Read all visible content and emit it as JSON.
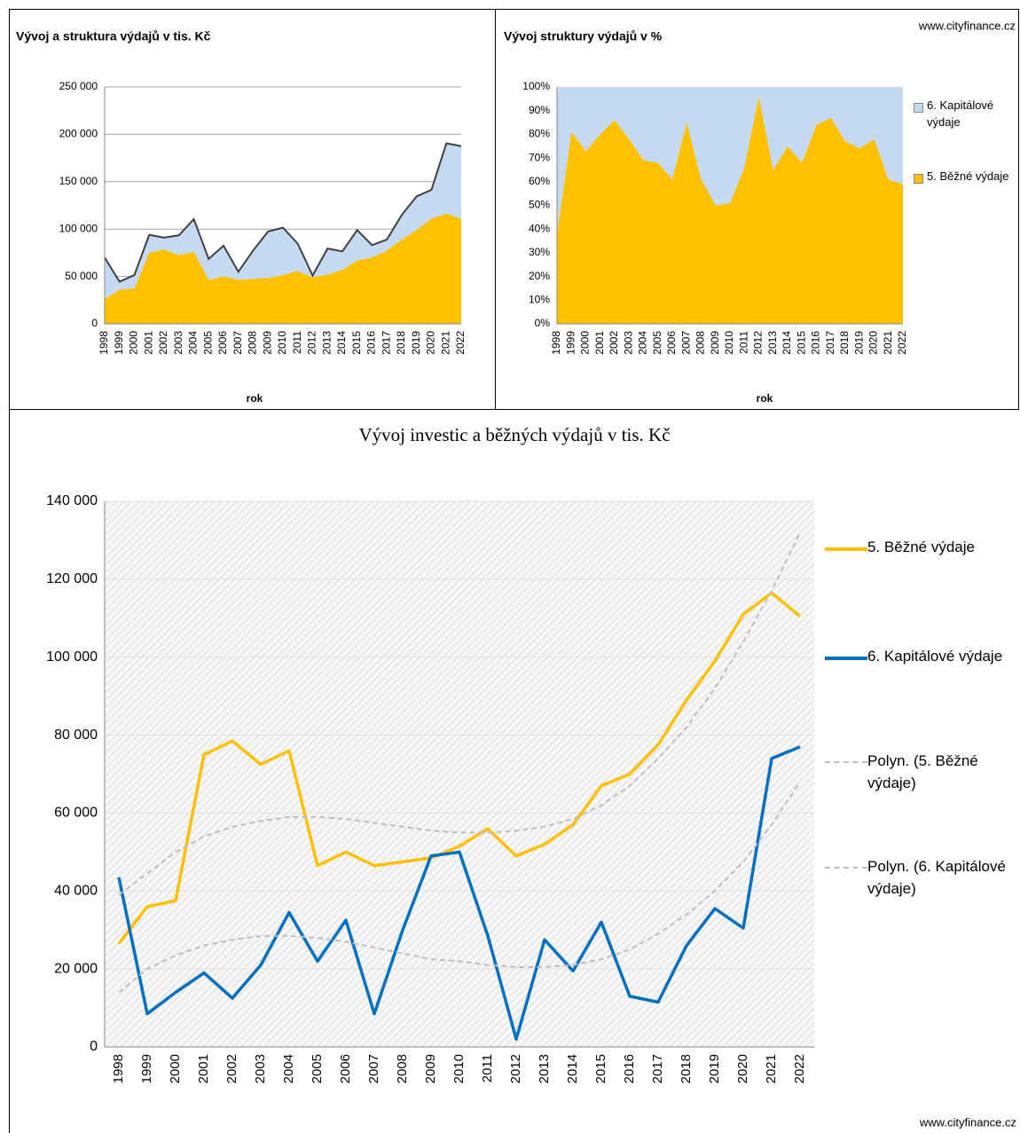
{
  "chart_data": [
    {
      "type": "area",
      "stacked": true,
      "title": "Vývoj a struktura výdajů v tis. Kč",
      "xlabel": "rok",
      "categories": [
        "1998",
        "1999",
        "2000",
        "2001",
        "2002",
        "2003",
        "2004",
        "2005",
        "2006",
        "2007",
        "2008",
        "2009",
        "2010",
        "2011",
        "2012",
        "2013",
        "2014",
        "2015",
        "2016",
        "2017",
        "2018",
        "2019",
        "2020",
        "2021",
        "2022"
      ],
      "series": [
        {
          "color": "#ffc000",
          "values": [
            26500,
            36000,
            37500,
            75000,
            78500,
            72500,
            76000,
            46500,
            50000,
            46500,
            47500,
            48500,
            51500,
            56000,
            49000,
            52000,
            57000,
            67000,
            70000,
            77500,
            89000,
            99000,
            111000,
            116500,
            110500
          ]
        },
        {
          "color": "#c5d9f1",
          "values": [
            43500,
            8500,
            14000,
            19000,
            12500,
            21000,
            34500,
            22000,
            32500,
            8500,
            30000,
            49000,
            50000,
            28500,
            2000,
            27500,
            19500,
            32000,
            13000,
            11500,
            26000,
            35500,
            30500,
            74000,
            77000
          ]
        }
      ],
      "outline_color": "#404040",
      "ylim": [
        0,
        250000
      ],
      "yticks": [
        0,
        {
          "value": 50000,
          "label": "50 000"
        },
        {
          "value": 100000,
          "label": "100 000"
        },
        {
          "value": 150000,
          "label": "150 000"
        },
        {
          "value": 200000,
          "label": "200 000"
        },
        {
          "value": 250000,
          "label": "250 000"
        }
      ],
      "grid": true
    },
    {
      "type": "area",
      "stacked": true,
      "title": "Vývoj struktury výdajů v %",
      "xlabel": "rok",
      "source": "www.cityfinance.cz",
      "categories": [
        "1998",
        "1999",
        "2000",
        "2001",
        "2002",
        "2003",
        "2004",
        "2005",
        "2006",
        "2007",
        "2008",
        "2009",
        "2010",
        "2011",
        "2012",
        "2013",
        "2014",
        "2015",
        "2016",
        "2017",
        "2018",
        "2019",
        "2020",
        "2021",
        "2022"
      ],
      "series": [
        {
          "name": "5. Běžné výdaje",
          "color": "#ffc000",
          "values": [
            38,
            81,
            73,
            80,
            86,
            78,
            69,
            68,
            61,
            85,
            61,
            50,
            51,
            66,
            96,
            65,
            75,
            68,
            84,
            87,
            77,
            74,
            78,
            61,
            59
          ]
        },
        {
          "name": "6. Kapitálové výdaje",
          "color": "#c5d9f1",
          "values": [
            62,
            19,
            27,
            20,
            14,
            22,
            31,
            32,
            39,
            15,
            39,
            50,
            49,
            34,
            4,
            35,
            25,
            32,
            16,
            13,
            23,
            26,
            22,
            39,
            41
          ]
        }
      ],
      "ylim": [
        0,
        100
      ],
      "yticks": [
        {
          "value": 0,
          "label": "0%"
        },
        {
          "value": 10,
          "label": "10%"
        },
        {
          "value": 20,
          "label": "20%"
        },
        {
          "value": 30,
          "label": "30%"
        },
        {
          "value": 40,
          "label": "40%"
        },
        {
          "value": 50,
          "label": "50%"
        },
        {
          "value": 60,
          "label": "60%"
        },
        {
          "value": 70,
          "label": "70%"
        },
        {
          "value": 80,
          "label": "80%"
        },
        {
          "value": 90,
          "label": "90%"
        },
        {
          "value": 100,
          "label": "100%"
        }
      ],
      "grid": false,
      "legend": "right"
    },
    {
      "type": "line",
      "title": "Vývoj investic a běžných výdajů v tis. Kč",
      "source": "www.cityfinance.cz",
      "categories": [
        "1998",
        "1999",
        "2000",
        "2001",
        "2002",
        "2003",
        "2004",
        "2005",
        "2006",
        "2007",
        "2008",
        "2009",
        "2010",
        "2011",
        "2012",
        "2013",
        "2014",
        "2015",
        "2016",
        "2017",
        "2018",
        "2019",
        "2020",
        "2021",
        "2022"
      ],
      "series": [
        {
          "name": "5. Běžné výdaje",
          "color": "#ffc000",
          "values": [
            26500,
            36000,
            37500,
            75000,
            78500,
            72500,
            76000,
            46500,
            50000,
            46500,
            47500,
            48500,
            51500,
            56000,
            49000,
            52000,
            57000,
            67000,
            70000,
            77500,
            89000,
            99000,
            111000,
            116500,
            110500
          ]
        },
        {
          "name": "6. Kapitálové výdaje",
          "color": "#0070c0",
          "values": [
            43500,
            8500,
            14000,
            19000,
            12500,
            21000,
            34500,
            22000,
            32500,
            8500,
            30000,
            49000,
            50000,
            28500,
            2000,
            27500,
            19500,
            32000,
            13000,
            11500,
            26000,
            35500,
            30500,
            74000,
            77000
          ]
        },
        {
          "name": "Polyn. (5. Běžné výdaje)",
          "color": "#bfbfbf",
          "dashed": true,
          "values": [
            39000,
            44500,
            50000,
            54000,
            56500,
            58000,
            59000,
            59000,
            58500,
            57500,
            56500,
            55500,
            55000,
            55000,
            55500,
            56500,
            58500,
            62000,
            67000,
            74000,
            82000,
            92000,
            104000,
            117000,
            132000
          ]
        },
        {
          "name": "Polyn. (6. Kapitálové výdaje)",
          "color": "#bfbfbf",
          "dashed": true,
          "values": [
            14000,
            20000,
            23500,
            26000,
            27500,
            28500,
            28500,
            28000,
            27000,
            25500,
            24000,
            22500,
            22000,
            21000,
            20500,
            20500,
            21000,
            22500,
            25000,
            29000,
            34000,
            40000,
            47500,
            57000,
            68000
          ]
        }
      ],
      "ylim": [
        0,
        140000
      ],
      "yticks": [
        0,
        {
          "value": 20000,
          "label": "20 000"
        },
        {
          "value": 40000,
          "label": "40 000"
        },
        {
          "value": 60000,
          "label": "60 000"
        },
        {
          "value": 80000,
          "label": "80 000"
        },
        {
          "value": 100000,
          "label": "100 000"
        },
        {
          "value": 120000,
          "label": "120 000"
        },
        {
          "value": 140000,
          "label": "140 000"
        }
      ],
      "grid": true,
      "legend": "right"
    }
  ]
}
